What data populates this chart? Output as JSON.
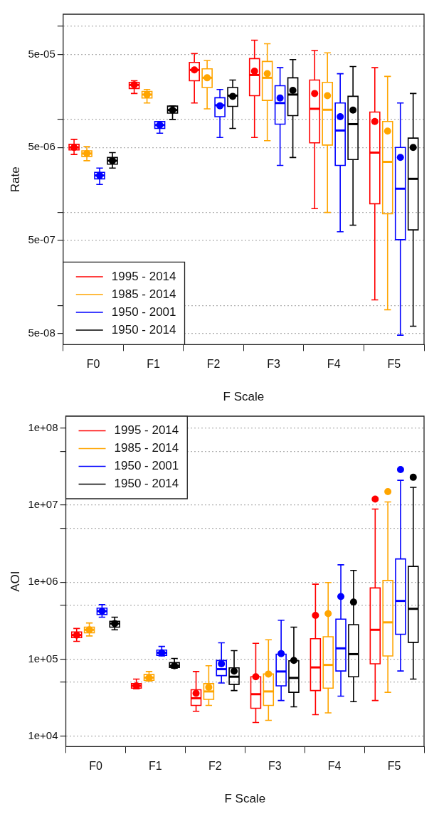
{
  "chart_data": [
    {
      "type": "box",
      "categories": [
        "F0",
        "F1",
        "F2",
        "F3",
        "F4",
        "F5"
      ],
      "xlabel": "F Scale",
      "ylabel": "Rate",
      "log": true,
      "grid": "y",
      "legend": "bottom left",
      "marker": "circle",
      "ylim": [
        3.8e-08,
        0.000135
      ],
      "yticks": [
        {
          "value": 0.0001,
          "label": null
        },
        {
          "value": 5e-05,
          "label": "5e-05"
        },
        {
          "value": 1e-05,
          "label": null
        },
        {
          "value": 5e-06,
          "label": "5e-06"
        },
        {
          "value": 1e-06,
          "label": null
        },
        {
          "value": 5e-07,
          "label": "5e-07"
        },
        {
          "value": 1e-07,
          "label": null
        },
        {
          "value": 5e-08,
          "label": "5e-08"
        }
      ],
      "series": [
        {
          "name": "1995 - 2014",
          "color": "#ff0000",
          "boxes": [
            {
              "low": 4.2e-06,
              "q1": 4.7e-06,
              "median": 5e-06,
              "q3": 5.4e-06,
              "high": 6.1e-06,
              "mean": 5e-06
            },
            {
              "low": 1.9e-05,
              "q1": 2.15e-05,
              "median": 2.35e-05,
              "q3": 2.5e-05,
              "high": 2.6e-05,
              "mean": 2.35e-05
            },
            {
              "low": 1.5e-05,
              "q1": 2.6e-05,
              "median": 3.4e-05,
              "q3": 4.1e-05,
              "high": 5.1e-05,
              "mean": 3.4e-05
            },
            {
              "low": 6.4e-06,
              "q1": 1.8e-05,
              "median": 3e-05,
              "q3": 4.5e-05,
              "high": 7.1e-05,
              "mean": 3.3e-05
            },
            {
              "low": 1.1e-06,
              "q1": 5.6e-06,
              "median": 1.3e-05,
              "q3": 2.65e-05,
              "high": 5.5e-05,
              "mean": 1.9e-05
            },
            {
              "low": 1.15e-07,
              "q1": 1.24e-06,
              "median": 4.4e-06,
              "q3": 1.2e-05,
              "high": 3.6e-05,
              "mean": 9.5e-06
            }
          ]
        },
        {
          "name": "1985 - 2014",
          "color": "#ffa500",
          "boxes": [
            {
              "low": 3.6e-06,
              "q1": 4e-06,
              "median": 4.3e-06,
              "q3": 4.6e-06,
              "high": 5.1e-06,
              "mean": 4.3e-06
            },
            {
              "low": 1.5e-05,
              "q1": 1.7e-05,
              "median": 1.85e-05,
              "q3": 2e-05,
              "high": 2.1e-05,
              "mean": 1.85e-05
            },
            {
              "low": 1.3e-05,
              "q1": 2.2e-05,
              "median": 2.8e-05,
              "q3": 3.5e-05,
              "high": 4.3e-05,
              "mean": 2.8e-05
            },
            {
              "low": 5.9e-06,
              "q1": 1.6e-05,
              "median": 2.8e-05,
              "q3": 4.2e-05,
              "high": 6.5e-05,
              "mean": 3.1e-05
            },
            {
              "low": 1e-06,
              "q1": 5.3e-06,
              "median": 1.27e-05,
              "q3": 2.5e-05,
              "high": 5.2e-05,
              "mean": 1.8e-05
            },
            {
              "low": 9e-08,
              "q1": 9.7e-07,
              "median": 3.5e-06,
              "q3": 9.5e-06,
              "high": 2.9e-05,
              "mean": 7.5e-06
            }
          ]
        },
        {
          "name": "1950 - 2001",
          "color": "#0000ff",
          "boxes": [
            {
              "low": 2e-06,
              "q1": 2.3e-06,
              "median": 2.5e-06,
              "q3": 2.7e-06,
              "high": 3e-06,
              "mean": 2.5e-06
            },
            {
              "low": 7.1e-06,
              "q1": 8e-06,
              "median": 8.7e-06,
              "q3": 9.5e-06,
              "high": 9.5e-06,
              "mean": 8.7e-06
            },
            {
              "low": 6.4e-06,
              "q1": 1.07e-05,
              "median": 1.42e-05,
              "q3": 1.71e-05,
              "high": 2.1e-05,
              "mean": 1.4e-05
            },
            {
              "low": 3.2e-06,
              "q1": 8.9e-06,
              "median": 1.5e-05,
              "q3": 2.3e-05,
              "high": 3.6e-05,
              "mean": 1.7e-05
            },
            {
              "low": 6.2e-07,
              "q1": 3.2e-06,
              "median": 7.6e-06,
              "q3": 1.5e-05,
              "high": 3.1e-05,
              "mean": 1.07e-05
            },
            {
              "low": 4.8e-08,
              "q1": 5.1e-07,
              "median": 1.8e-06,
              "q3": 5e-06,
              "high": 1.5e-05,
              "mean": 3.9e-06
            }
          ]
        },
        {
          "name": "1950 - 2014",
          "color": "#000000",
          "boxes": [
            {
              "low": 3e-06,
              "q1": 3.3e-06,
              "median": 3.6e-06,
              "q3": 3.9e-06,
              "high": 4.4e-06,
              "mean": 3.6e-06
            },
            {
              "low": 1e-05,
              "q1": 1.17e-05,
              "median": 1.26e-05,
              "q3": 1.39e-05,
              "high": 1.39e-05,
              "mean": 1.26e-05
            },
            {
              "low": 8e-06,
              "q1": 1.38e-05,
              "median": 1.8e-05,
              "q3": 2.2e-05,
              "high": 2.65e-05,
              "mean": 1.77e-05
            },
            {
              "low": 3.9e-06,
              "q1": 1.1e-05,
              "median": 1.85e-05,
              "q3": 2.8e-05,
              "high": 4.4e-05,
              "mean": 2.05e-05
            },
            {
              "low": 7.3e-07,
              "q1": 3.7e-06,
              "median": 8.9e-06,
              "q3": 1.77e-05,
              "high": 3.7e-05,
              "mean": 1.26e-05
            },
            {
              "low": 6e-08,
              "q1": 6.5e-07,
              "median": 2.3e-06,
              "q3": 6.3e-06,
              "high": 1.9e-05,
              "mean": 5e-06
            }
          ]
        }
      ]
    },
    {
      "type": "box",
      "categories": [
        "F0",
        "F1",
        "F2",
        "F3",
        "F4",
        "F5"
      ],
      "xlabel": "F Scale",
      "ylabel": "AOI",
      "log": true,
      "grid": "y",
      "legend": "top left",
      "marker": "circle",
      "ylim": [
        7300.0,
        143000000.0
      ],
      "yticks": [
        {
          "value": 100000000.0,
          "label": "1e+08"
        },
        {
          "value": 50000000.0,
          "label": null
        },
        {
          "value": 10000000.0,
          "label": "1e+07"
        },
        {
          "value": 5000000.0,
          "label": null
        },
        {
          "value": 1000000.0,
          "label": "1e+06"
        },
        {
          "value": 500000.0,
          "label": null
        },
        {
          "value": 100000.0,
          "label": "1e+05"
        },
        {
          "value": 50000.0,
          "label": null
        },
        {
          "value": 10000.0,
          "label": "1e+04"
        }
      ],
      "series": [
        {
          "name": "1995 - 2014",
          "color": "#ff0000",
          "boxes": [
            {
              "low": 170000.0,
              "q1": 190000.0,
              "median": 205000.0,
              "q3": 225000.0,
              "high": 250000.0,
              "mean": 205000.0
            },
            {
              "low": 41000.0,
              "q1": 42000.0,
              "median": 45000.0,
              "q3": 48000.0,
              "high": 55000.0,
              "mean": 45000.0
            },
            {
              "low": 21000.0,
              "q1": 25000.0,
              "median": 31000.0,
              "q3": 40000.0,
              "high": 69000.0,
              "mean": 36000.0
            },
            {
              "low": 15000.0,
              "q1": 23000.0,
              "median": 35000.0,
              "q3": 59000.0,
              "high": 160000.0,
              "mean": 59000.0
            },
            {
              "low": 19000.0,
              "q1": 39000.0,
              "median": 78000.0,
              "q3": 184000.0,
              "high": 940000.0,
              "mean": 370000.0
            },
            {
              "low": 29000.0,
              "q1": 87000.0,
              "median": 240000.0,
              "q3": 840000.0,
              "high": 8900000.0,
              "mean": 12000000.0
            }
          ]
        },
        {
          "name": "1985 - 2014",
          "color": "#ffa500",
          "boxes": [
            {
              "low": 200000.0,
              "q1": 220000.0,
              "median": 240000.0,
              "q3": 260000.0,
              "high": 295000.0,
              "mean": 240000.0
            },
            {
              "low": 52000.0,
              "q1": 53000.0,
              "median": 57500.0,
              "q3": 63000.0,
              "high": 69000.0,
              "mean": 57500.0
            },
            {
              "low": 25000.0,
              "q1": 30000.0,
              "median": 38000.0,
              "q3": 48000.0,
              "high": 82000.0,
              "mean": 43000.0
            },
            {
              "low": 16000.0,
              "q1": 25000.0,
              "median": 38000.0,
              "q3": 64000.0,
              "high": 178000.0,
              "mean": 64000.0
            },
            {
              "low": 20000.0,
              "q1": 42000.0,
              "median": 84000.0,
              "q3": 195000.0,
              "high": 990000.0,
              "mean": 390000.0
            },
            {
              "low": 37000.0,
              "q1": 110000.0,
              "median": 300000.0,
              "q3": 1050000.0,
              "high": 11000000.0,
              "mean": 15000000.0
            }
          ]
        },
        {
          "name": "1950 - 2001",
          "color": "#0000ff",
          "boxes": [
            {
              "low": 350000.0,
              "q1": 380000.0,
              "median": 420000.0,
              "q3": 460000.0,
              "high": 510000.0,
              "mean": 420000.0
            },
            {
              "low": 110000.0,
              "q1": 112000.0,
              "median": 121000.0,
              "q3": 131000.0,
              "high": 146000.0,
              "mean": 121000.0
            },
            {
              "low": 49000.0,
              "q1": 61000.0,
              "median": 74000.0,
              "q3": 96000.0,
              "high": 163000.0,
              "mean": 87000.0
            },
            {
              "low": 29000.0,
              "q1": 45000.0,
              "median": 69000.0,
              "q3": 116000.0,
              "high": 320000.0,
              "mean": 118000.0
            },
            {
              "low": 33000.0,
              "q1": 70000.0,
              "median": 138000.0,
              "q3": 330000.0,
              "high": 1680000.0,
              "mean": 650000.0
            },
            {
              "low": 70000.0,
              "q1": 210000.0,
              "median": 570000.0,
              "q3": 2000000.0,
              "high": 21000000.0,
              "mean": 29000000.0
            }
          ]
        },
        {
          "name": "1950 - 2014",
          "color": "#000000",
          "boxes": [
            {
              "low": 240000.0,
              "q1": 260000.0,
              "median": 290000.0,
              "q3": 310000.0,
              "high": 350000.0,
              "mean": 290000.0
            },
            {
              "low": 76000.0,
              "q1": 78000.0,
              "median": 82000.0,
              "q3": 90000.0,
              "high": 102000.0,
              "mean": 82000.0
            },
            {
              "low": 39000.0,
              "q1": 47000.0,
              "median": 59000.0,
              "q3": 77000.0,
              "high": 129000.0,
              "mean": 70000.0
            },
            {
              "low": 24000.0,
              "q1": 37000.0,
              "median": 57000.0,
              "q3": 95000.0,
              "high": 260000.0,
              "mean": 96000.0
            },
            {
              "low": 28000.0,
              "q1": 59000.0,
              "median": 116000.0,
              "q3": 280000.0,
              "high": 1420000.0,
              "mean": 550000.0
            },
            {
              "low": 55000.0,
              "q1": 165000.0,
              "median": 450000.0,
              "q3": 1600000.0,
              "high": 17000000.0,
              "mean": 23000000.0
            }
          ]
        }
      ]
    }
  ]
}
